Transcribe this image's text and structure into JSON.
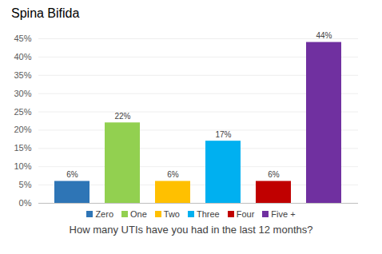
{
  "chart_data": {
    "type": "bar",
    "title": "Spina Bifida",
    "x_label": "How many UTIs have you had in the last 12 months?",
    "categories": [
      "Zero",
      "One",
      "Two",
      "Three",
      "Four",
      "Five +"
    ],
    "values": [
      6,
      22,
      6,
      17,
      6,
      44
    ],
    "value_labels": [
      "6%",
      "22%",
      "6%",
      "17%",
      "6%",
      "44%"
    ],
    "colors": [
      "#2e75b6",
      "#92d050",
      "#ffc000",
      "#00b0f0",
      "#c00000",
      "#7030a0"
    ],
    "ylim": [
      0,
      45
    ],
    "yticks": [
      {
        "value": 0,
        "label": "0%"
      },
      {
        "value": 5,
        "label": "5%"
      },
      {
        "value": 10,
        "label": "10%"
      },
      {
        "value": 15,
        "label": "15%"
      },
      {
        "value": 20,
        "label": "20%"
      },
      {
        "value": 25,
        "label": "25%"
      },
      {
        "value": 30,
        "label": "30%"
      },
      {
        "value": 35,
        "label": "35%"
      },
      {
        "value": 40,
        "label": "40%"
      },
      {
        "value": 45,
        "label": "45%"
      }
    ],
    "grid": true,
    "data_labels": true,
    "legend": "bottom",
    "tick_labels": "y"
  }
}
